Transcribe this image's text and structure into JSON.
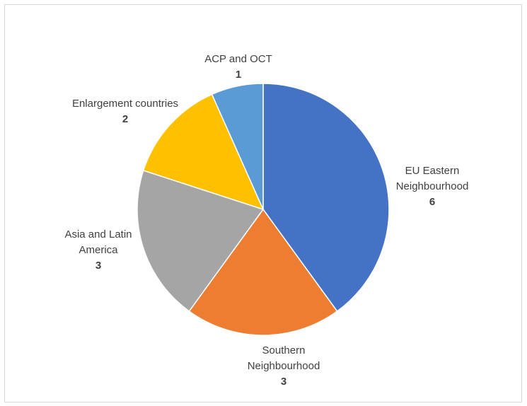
{
  "chart_data": {
    "type": "pie",
    "title": "",
    "categories": [
      "EU Eastern Neighbourhood",
      "Southern Neighbourhood",
      "Asia and Latin America",
      "Enlargement countries",
      "ACP and OCT"
    ],
    "values": [
      6,
      3,
      3,
      2,
      1
    ],
    "colors": [
      "#4472C4",
      "#ED7D31",
      "#A5A5A5",
      "#FFC000",
      "#5B9BD5"
    ],
    "label_lines": [
      [
        "EU Eastern",
        "Neighbourhood"
      ],
      [
        "Southern",
        "Neighbourhood"
      ],
      [
        "Asia and Latin",
        "America"
      ],
      [
        "Enlargement countries"
      ],
      [
        "ACP and OCT"
      ]
    ],
    "value_labels": [
      "6",
      "3",
      "3",
      "2",
      "1"
    ],
    "legend": "none"
  }
}
